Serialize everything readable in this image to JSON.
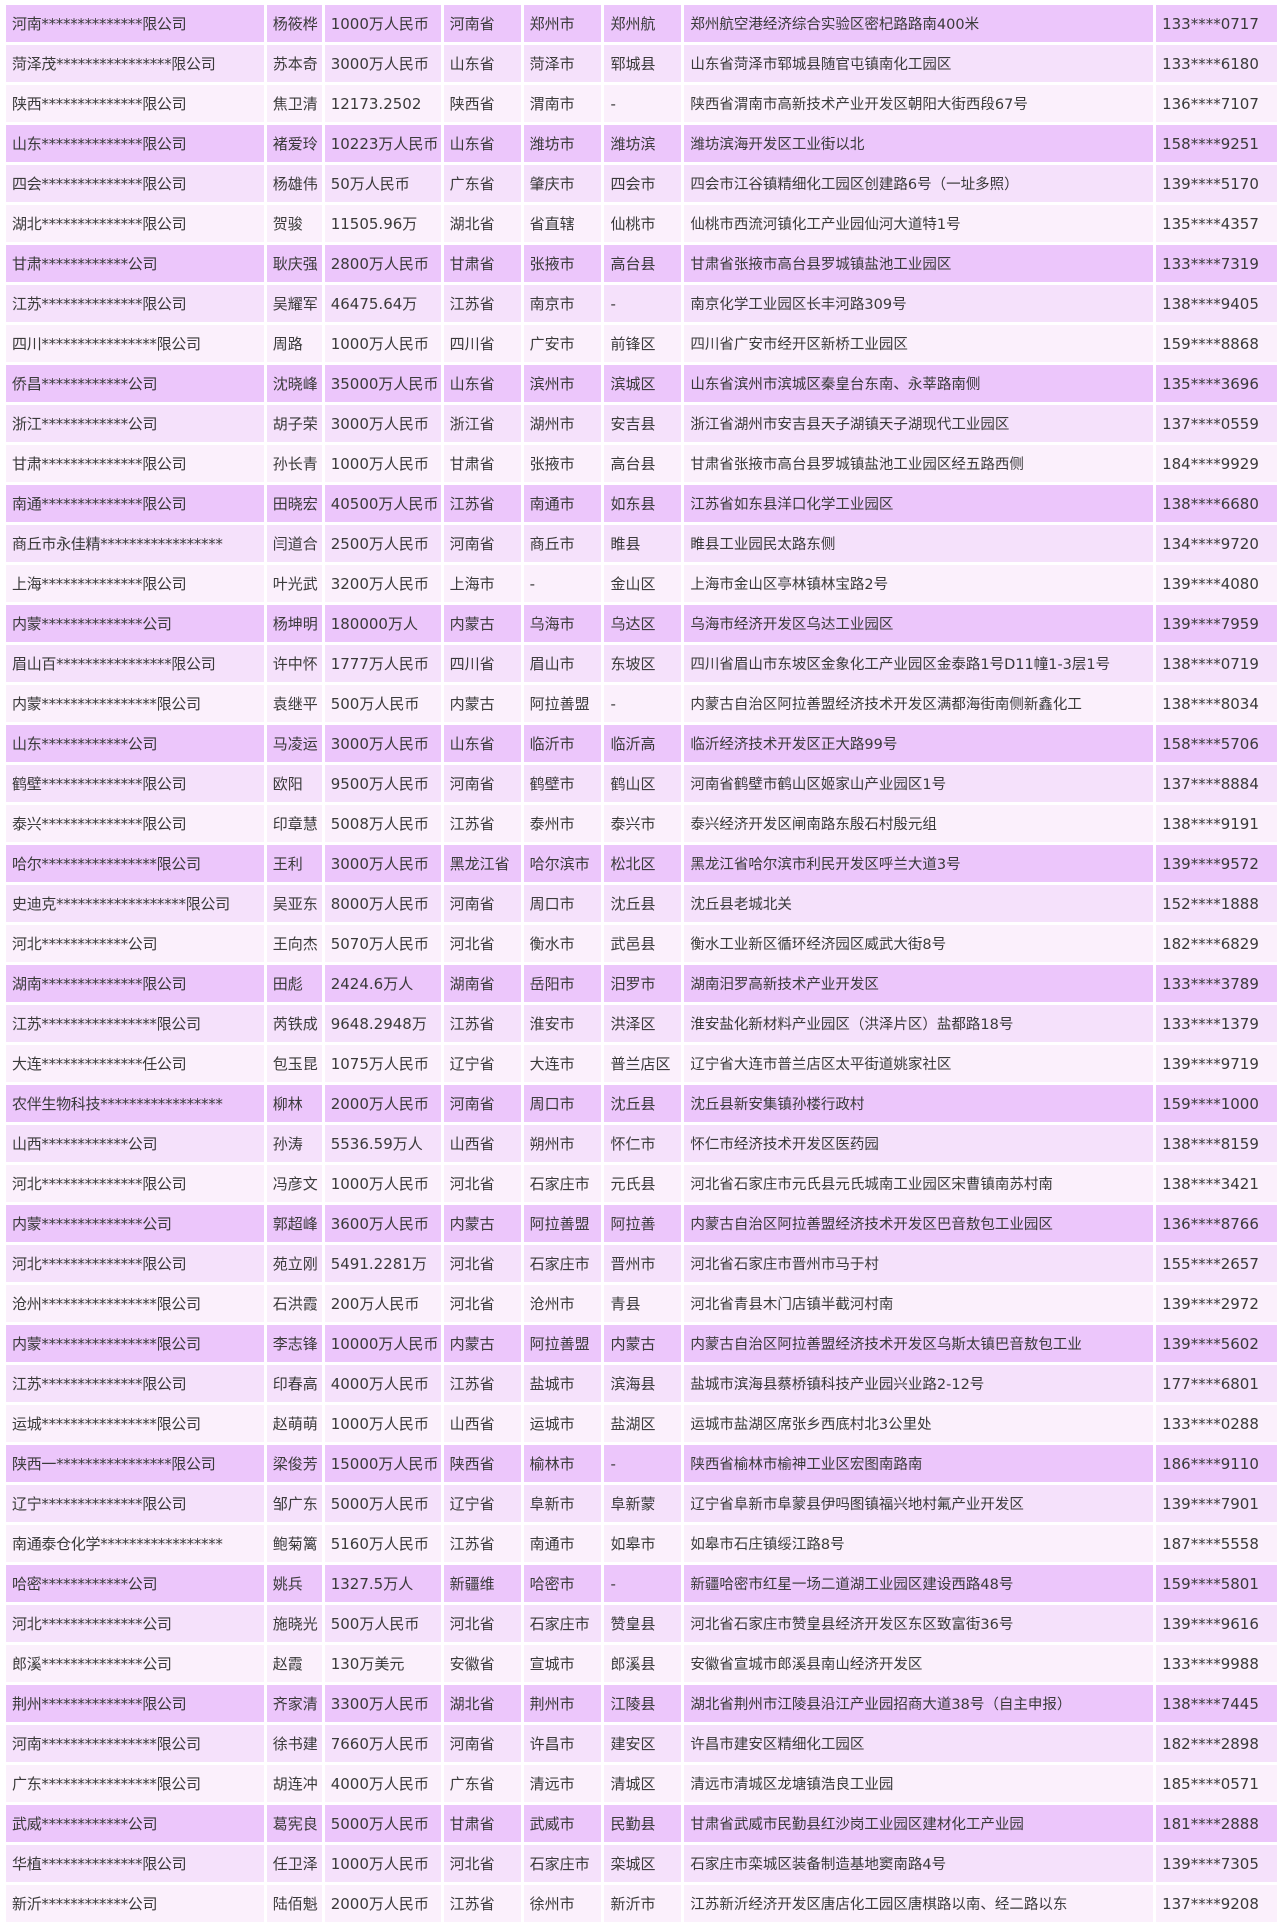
{
  "colors": {
    "row_dark": "#ecc6fb",
    "row_medium": "#f5e1fb",
    "row_light": "#fbf0fc",
    "text": "#3a3a3a"
  },
  "rows": [
    [
      "河南**************限公司",
      "杨筱桦",
      "1000万人民币",
      "河南省",
      "郑州市",
      "郑州航",
      "郑州航空港经济综合实验区密杞路路南400米",
      "133****0717"
    ],
    [
      "菏泽茂****************限公司",
      "苏本奇",
      "3000万人民币",
      "山东省",
      "菏泽市",
      "郓城县",
      "山东省菏泽市郓城县随官屯镇南化工园区",
      "133****6180"
    ],
    [
      "陕西**************限公司",
      "焦卫清",
      "12173.2502",
      "陕西省",
      "渭南市",
      "-",
      "陕西省渭南市高新技术产业开发区朝阳大街西段67号",
      "136****7107"
    ],
    [
      "山东**************限公司",
      "褚爱玲",
      "10223万人民币",
      "山东省",
      "潍坊市",
      "潍坊滨",
      "潍坊滨海开发区工业街以北",
      "158****9251"
    ],
    [
      "四会**************限公司",
      "杨雄伟",
      "50万人民币",
      "广东省",
      "肇庆市",
      "四会市",
      "四会市江谷镇精细化工园区创建路6号（一址多照）",
      "139****5170"
    ],
    [
      "湖北**************限公司",
      "贺骏",
      "11505.96万",
      "湖北省",
      "省直辖",
      "仙桃市",
      "仙桃市西流河镇化工产业园仙河大道特1号",
      "135****4357"
    ],
    [
      "甘肃************公司",
      "耿庆强",
      "2800万人民币",
      "甘肃省",
      "张掖市",
      "高台县",
      "甘肃省张掖市高台县罗城镇盐池工业园区",
      "133****7319"
    ],
    [
      "江苏**************限公司",
      "吴耀军",
      "46475.64万",
      "江苏省",
      "南京市",
      "-",
      "南京化学工业园区长丰河路309号",
      "138****9405"
    ],
    [
      "四川****************限公司",
      "周路",
      "1000万人民币",
      "四川省",
      "广安市",
      "前锋区",
      "四川省广安市经开区新桥工业园区",
      "159****8868"
    ],
    [
      "侨昌************公司",
      "沈晓峰",
      "35000万人民币",
      "山东省",
      "滨州市",
      "滨城区",
      "山东省滨州市滨城区秦皇台东南、永莘路南侧",
      "135****3696"
    ],
    [
      "浙江************公司",
      "胡子荣",
      "3000万人民币",
      "浙江省",
      "湖州市",
      "安吉县",
      "浙江省湖州市安吉县天子湖镇天子湖现代工业园区",
      "137****0559"
    ],
    [
      "甘肃**************限公司",
      "孙长青",
      "1000万人民币",
      "甘肃省",
      "张掖市",
      "高台县",
      "甘肃省张掖市高台县罗城镇盐池工业园区经五路西侧",
      "184****9929"
    ],
    [
      "南通**************限公司",
      "田晓宏",
      "40500万人民币",
      "江苏省",
      "南通市",
      "如东县",
      "江苏省如东县洋口化学工业园区",
      "138****6680"
    ],
    [
      "商丘市永佳精*****************",
      "闫道合",
      "2500万人民币",
      "河南省",
      "商丘市",
      "睢县",
      "睢县工业园民太路东侧",
      "134****9720"
    ],
    [
      "上海**************限公司",
      "叶光武",
      "3200万人民币",
      "上海市",
      "-",
      "金山区",
      "上海市金山区亭林镇林宝路2号",
      "139****4080"
    ],
    [
      "内蒙**************公司",
      "杨坤明",
      "180000万人",
      "内蒙古",
      "乌海市",
      "乌达区",
      "乌海市经济开发区乌达工业园区",
      "139****7959"
    ],
    [
      "眉山百****************限公司",
      "许中怀",
      "1777万人民币",
      "四川省",
      "眉山市",
      "东坡区",
      "四川省眉山市东坡区金象化工产业园区金泰路1号D11幢1-3层1号",
      "138****0719"
    ],
    [
      "内蒙****************限公司",
      "袁继平",
      "500万人民币",
      "内蒙古",
      "阿拉善盟",
      "-",
      "内蒙古自治区阿拉善盟经济技术开发区满都海街南侧新鑫化工",
      "138****8034"
    ],
    [
      "山东************公司",
      "马凌运",
      "3000万人民币",
      "山东省",
      "临沂市",
      "临沂高",
      "临沂经济技术开发区正大路99号",
      "158****5706"
    ],
    [
      "鹤壁**************限公司",
      "欧阳",
      "9500万人民币",
      "河南省",
      "鹤壁市",
      "鹤山区",
      "河南省鹤壁市鹤山区姬家山产业园区1号",
      "137****8884"
    ],
    [
      "泰兴**************限公司",
      "印章慧",
      "5008万人民币",
      "江苏省",
      "泰州市",
      "泰兴市",
      "泰兴经济开发区闸南路东殷石村殷元组",
      "138****9191"
    ],
    [
      "哈尔****************限公司",
      "王利",
      "3000万人民币",
      "黑龙江省",
      "哈尔滨市",
      "松北区",
      "黑龙江省哈尔滨市利民开发区呼兰大道3号",
      "139****9572"
    ],
    [
      "史迪克******************限公司",
      "吴亚东",
      "8000万人民币",
      "河南省",
      "周口市",
      "沈丘县",
      "沈丘县老城北关",
      "152****1888"
    ],
    [
      "河北************公司",
      "王向杰",
      "5070万人民币",
      "河北省",
      "衡水市",
      "武邑县",
      "衡水工业新区循环经济园区威武大街8号",
      "182****6829"
    ],
    [
      "湖南**************限公司",
      "田彪",
      "2424.6万人",
      "湖南省",
      "岳阳市",
      "汨罗市",
      "湖南汨罗高新技术产业开发区",
      "133****3789"
    ],
    [
      "江苏****************限公司",
      "芮铁成",
      "9648.2948万",
      "江苏省",
      "淮安市",
      "洪泽区",
      "淮安盐化新材料产业园区（洪泽片区）盐都路18号",
      "133****1379"
    ],
    [
      "大连**************任公司",
      "包玉昆",
      "1075万人民币",
      "辽宁省",
      "大连市",
      "普兰店区",
      "辽宁省大连市普兰店区太平街道姚家社区",
      "139****9719"
    ],
    [
      "农伴生物科技*****************",
      "柳林",
      "2000万人民币",
      "河南省",
      "周口市",
      "沈丘县",
      "沈丘县新安集镇孙楼行政村",
      "159****1000"
    ],
    [
      "山西************公司",
      "孙涛",
      "5536.59万人",
      "山西省",
      "朔州市",
      "怀仁市",
      "怀仁市经济技术开发区医药园",
      "138****8159"
    ],
    [
      "河北**************限公司",
      "冯彦文",
      "1000万人民币",
      "河北省",
      "石家庄市",
      "元氏县",
      "河北省石家庄市元氏县元氏城南工业园区宋曹镇南苏村南",
      "138****3421"
    ],
    [
      "内蒙**************公司",
      "郭超峰",
      "3600万人民币",
      "内蒙古",
      "阿拉善盟",
      "阿拉善",
      "内蒙古自治区阿拉善盟经济技术开发区巴音敖包工业园区",
      "136****8766"
    ],
    [
      "河北**************限公司",
      "苑立刚",
      "5491.2281万",
      "河北省",
      "石家庄市",
      "晋州市",
      "河北省石家庄市晋州市马于村",
      "155****2657"
    ],
    [
      "沧州****************限公司",
      "石洪霞",
      "200万人民币",
      "河北省",
      "沧州市",
      "青县",
      "河北省青县木门店镇半截河村南",
      "139****2972"
    ],
    [
      "内蒙****************限公司",
      "李志锋",
      "10000万人民币",
      "内蒙古",
      "阿拉善盟",
      "内蒙古",
      "内蒙古自治区阿拉善盟经济技术开发区乌斯太镇巴音敖包工业",
      "139****5602"
    ],
    [
      "江苏**************限公司",
      "印春高",
      "4000万人民币",
      "江苏省",
      "盐城市",
      "滨海县",
      "盐城市滨海县蔡桥镇科技产业园兴业路2-12号",
      "177****6801"
    ],
    [
      "运城****************限公司",
      "赵萌萌",
      "1000万人民币",
      "山西省",
      "运城市",
      "盐湖区",
      "运城市盐湖区席张乡西底村北3公里处",
      "133****0288"
    ],
    [
      "陕西一****************限公司",
      "梁俊芳",
      "15000万人民币",
      "陕西省",
      "榆林市",
      "-",
      "陕西省榆林市榆神工业区宏图南路南",
      "186****9110"
    ],
    [
      "辽宁**************限公司",
      "邹广东",
      "5000万人民币",
      "辽宁省",
      "阜新市",
      "阜新蒙",
      "辽宁省阜新市阜蒙县伊吗图镇福兴地村氟产业开发区",
      "139****7901"
    ],
    [
      "南通泰仓化学*****************",
      "鲍菊篱",
      "5160万人民币",
      "江苏省",
      "南通市",
      "如皋市",
      "如皋市石庄镇绥江路8号",
      "187****5558"
    ],
    [
      "哈密************公司",
      "姚兵",
      "1327.5万人",
      "新疆维",
      "哈密市",
      "-",
      "新疆哈密市红星一场二道湖工业园区建设西路48号",
      "159****5801"
    ],
    [
      "河北**************公司",
      "施晓光",
      "500万人民币",
      "河北省",
      "石家庄市",
      "赞皇县",
      "河北省石家庄市赞皇县经济开发区东区致富街36号",
      "139****9616"
    ],
    [
      "郎溪**************公司",
      "赵霞",
      "130万美元",
      "安徽省",
      "宣城市",
      "郎溪县",
      "安徽省宣城市郎溪县南山经济开发区",
      "133****9988"
    ],
    [
      "荆州**************限公司",
      "齐家清",
      "3300万人民币",
      "湖北省",
      "荆州市",
      "江陵县",
      "湖北省荆州市江陵县沿江产业园招商大道38号（自主申报）",
      "138****7445"
    ],
    [
      "河南****************限公司",
      "徐书建",
      "7660万人民币",
      "河南省",
      "许昌市",
      "建安区",
      "许昌市建安区精细化工园区",
      "182****2898"
    ],
    [
      "广东****************限公司",
      "胡连冲",
      "4000万人民币",
      "广东省",
      "清远市",
      "清城区",
      "清远市清城区龙塘镇浩良工业园",
      "185****0571"
    ],
    [
      "武威************公司",
      "葛宪良",
      "5000万人民币",
      "甘肃省",
      "武威市",
      "民勤县",
      "甘肃省武威市民勤县红沙岗工业园区建材化工产业园",
      "181****2888"
    ],
    [
      "华植**************限公司",
      "任卫泽",
      "1000万人民币",
      "河北省",
      "石家庄市",
      "栾城区",
      "石家庄市栾城区装备制造基地窦南路4号",
      "139****7305"
    ],
    [
      "新沂************公司",
      "陆佰魁",
      "2000万人民币",
      "江苏省",
      "徐州市",
      "新沂市",
      "江苏新沂经济开发区唐店化工园区唐棋路以南、经二路以东",
      "137****9208"
    ]
  ]
}
